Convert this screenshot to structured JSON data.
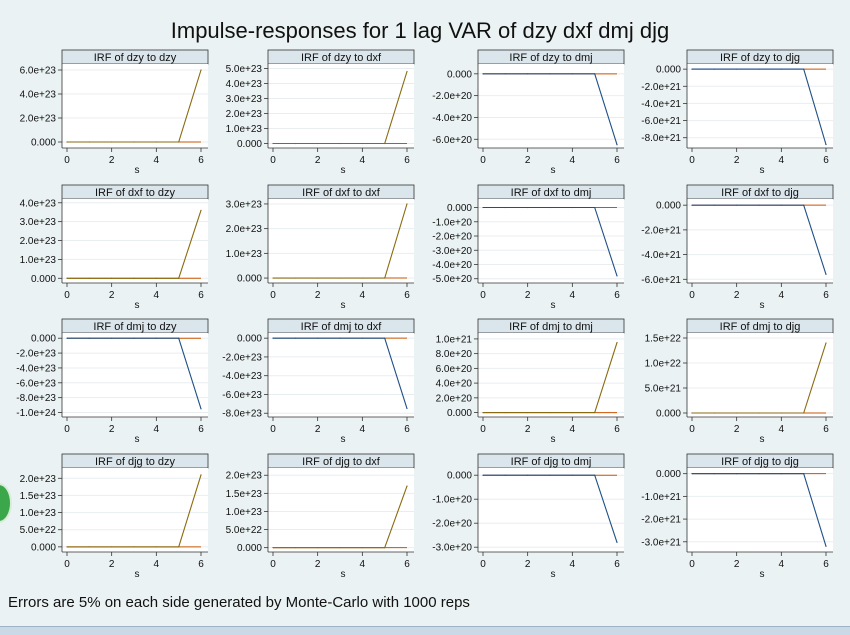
{
  "title": "Impulse-responses for 1 lag VAR of dzy dxf dmj djg",
  "note": "Errors are 5% on each side generated by Monte-Carlo with 1000 reps",
  "colors": {
    "background": "#eaf2f3",
    "plot_area": "#ffffff",
    "panel_header": "#dbe6ec",
    "rising_line": "#8a6a10",
    "falling_line": "#1f4f86",
    "baseline": "#cc5500"
  },
  "chart_data": [
    {
      "type": "line",
      "title": "IRF of dzy to dzy",
      "xlabel": "s",
      "x": [
        0,
        1,
        2,
        3,
        4,
        5,
        6
      ],
      "values": [
        0,
        0,
        0,
        0,
        0,
        0,
        6e+23
      ],
      "ylim": [
        -5e+22,
        6.5e+23
      ],
      "yticks": [
        0,
        2e+23,
        4e+23,
        6e+23
      ],
      "ytick_labels": [
        "0.000",
        "2.0e+23",
        "4.0e+23",
        "6.0e+23"
      ],
      "xticks": [
        "0",
        "2",
        "4",
        "6"
      ]
    },
    {
      "type": "line",
      "title": "IRF of dzy to dxf",
      "xlabel": "s",
      "x": [
        0,
        1,
        2,
        3,
        4,
        5,
        6
      ],
      "values": [
        0,
        0,
        0,
        0,
        0,
        0,
        4.8e+23
      ],
      "ylim": [
        -3e+22,
        5.3e+23
      ],
      "yticks": [
        0,
        1e+23,
        2e+23,
        3e+23,
        4e+23,
        5e+23
      ],
      "ytick_labels": [
        "0.000",
        "1.0e+23",
        "2.0e+23",
        "3.0e+23",
        "4.0e+23",
        "5.0e+23"
      ],
      "xticks": [
        "0",
        "2",
        "4",
        "6"
      ]
    },
    {
      "type": "line",
      "title": "IRF of dzy to dmj",
      "xlabel": "s",
      "x": [
        0,
        1,
        2,
        3,
        4,
        5,
        6
      ],
      "values": [
        0,
        0,
        0,
        0,
        0,
        0,
        -6.5e+20
      ],
      "ylim": [
        -6.8e+20,
        9e+19
      ],
      "yticks": [
        0,
        -2e+20,
        -4e+20,
        -6e+20
      ],
      "ytick_labels": [
        "0.000",
        "-2.0e+20",
        "-4.0e+20",
        "-6.0e+20"
      ],
      "xticks": [
        "0",
        "2",
        "4",
        "6"
      ]
    },
    {
      "type": "line",
      "title": "IRF of dzy to djg",
      "xlabel": "s",
      "x": [
        0,
        1,
        2,
        3,
        4,
        5,
        6
      ],
      "values": [
        0,
        0,
        0,
        0,
        0,
        0,
        -8.8e+21
      ],
      "ylim": [
        -9.2e+21,
        6e+20
      ],
      "yticks": [
        0,
        -2e+21,
        -4e+21,
        -6e+21,
        -8e+21
      ],
      "ytick_labels": [
        "0.000",
        "-2.0e+21",
        "-4.0e+21",
        "-6.0e+21",
        "-8.0e+21"
      ],
      "xticks": [
        "0",
        "2",
        "4",
        "6"
      ]
    },
    {
      "type": "line",
      "title": "IRF of dxf to dzy",
      "xlabel": "s",
      "x": [
        0,
        1,
        2,
        3,
        4,
        5,
        6
      ],
      "values": [
        0,
        0,
        0,
        0,
        0,
        0,
        3.6e+23
      ],
      "ylim": [
        -2.5e+22,
        4.2e+23
      ],
      "yticks": [
        0,
        1e+23,
        2e+23,
        3e+23,
        4e+23
      ],
      "ytick_labels": [
        "0.000",
        "1.0e+23",
        "2.0e+23",
        "3.0e+23",
        "4.0e+23"
      ],
      "xticks": [
        "0",
        "2",
        "4",
        "6"
      ]
    },
    {
      "type": "line",
      "title": "IRF of dxf to dxf",
      "xlabel": "s",
      "x": [
        0,
        1,
        2,
        3,
        4,
        5,
        6
      ],
      "values": [
        0,
        0,
        0,
        0,
        0,
        0,
        3e+23
      ],
      "ylim": [
        -2e+22,
        3.2e+23
      ],
      "yticks": [
        0,
        1e+23,
        2e+23,
        3e+23
      ],
      "ytick_labels": [
        "0.000",
        "1.0e+23",
        "2.0e+23",
        "3.0e+23"
      ],
      "xticks": [
        "0",
        "2",
        "4",
        "6"
      ]
    },
    {
      "type": "line",
      "title": "IRF of dxf to dmj",
      "xlabel": "s",
      "x": [
        0,
        1,
        2,
        3,
        4,
        5,
        6
      ],
      "values": [
        0,
        0,
        0,
        0,
        0,
        0,
        -4.8e+20
      ],
      "ylim": [
        -5.3e+20,
        6e+19
      ],
      "yticks": [
        0,
        -1e+20,
        -2e+20,
        -3e+20,
        -4e+20,
        -5e+20
      ],
      "ytick_labels": [
        "0.000",
        "-1.0e+20",
        "-2.0e+20",
        "-3.0e+20",
        "-4.0e+20",
        "-5.0e+20"
      ],
      "xticks": [
        "0",
        "2",
        "4",
        "6"
      ]
    },
    {
      "type": "line",
      "title": "IRF of dxf to djg",
      "xlabel": "s",
      "x": [
        0,
        1,
        2,
        3,
        4,
        5,
        6
      ],
      "values": [
        0,
        0,
        0,
        0,
        0,
        0,
        -5.6e+21
      ],
      "ylim": [
        -6.3e+21,
        5e+20
      ],
      "yticks": [
        0,
        -2e+21,
        -4e+21,
        -6e+21
      ],
      "ytick_labels": [
        "0.000",
        "-2.0e+21",
        "-4.0e+21",
        "-6.0e+21"
      ],
      "xticks": [
        "0",
        "2",
        "4",
        "6"
      ]
    },
    {
      "type": "line",
      "title": "IRF of dmj to dzy",
      "xlabel": "s",
      "x": [
        0,
        1,
        2,
        3,
        4,
        5,
        6
      ],
      "values": [
        0,
        0,
        0,
        0,
        0,
        0,
        -9.5e+23
      ],
      "ylim": [
        -1.06e+24,
        7e+22
      ],
      "yticks": [
        0,
        -2e+23,
        -4e+23,
        -6e+23,
        -8e+23,
        -1e+24
      ],
      "ytick_labels": [
        "0.000",
        "-2.0e+23",
        "-4.0e+23",
        "-6.0e+23",
        "-8.0e+23",
        "-1.0e+24"
      ],
      "xticks": [
        "0",
        "2",
        "4",
        "6"
      ]
    },
    {
      "type": "line",
      "title": "IRF of dmj to dxf",
      "xlabel": "s",
      "x": [
        0,
        1,
        2,
        3,
        4,
        5,
        6
      ],
      "values": [
        0,
        0,
        0,
        0,
        0,
        0,
        -7.5e+23
      ],
      "ylim": [
        -8.4e+23,
        5.5e+22
      ],
      "yticks": [
        0,
        -2e+23,
        -4e+23,
        -6e+23,
        -8e+23
      ],
      "ytick_labels": [
        "0.000",
        "-2.0e+23",
        "-4.0e+23",
        "-6.0e+23",
        "-8.0e+23"
      ],
      "xticks": [
        "0",
        "2",
        "4",
        "6"
      ]
    },
    {
      "type": "line",
      "title": "IRF of dmj to dmj",
      "xlabel": "s",
      "x": [
        0,
        1,
        2,
        3,
        4,
        5,
        6
      ],
      "values": [
        0,
        0,
        0,
        0,
        0,
        0,
        9.5e+20
      ],
      "ylim": [
        -6e+19,
        1.08e+21
      ],
      "yticks": [
        0,
        2e+20,
        4e+20,
        6e+20,
        8e+20,
        1e+21
      ],
      "ytick_labels": [
        "0.000",
        "2.0e+20",
        "4.0e+20",
        "6.0e+20",
        "8.0e+20",
        "1.0e+21"
      ],
      "xticks": [
        "0",
        "2",
        "4",
        "6"
      ]
    },
    {
      "type": "line",
      "title": "IRF of dmj to djg",
      "xlabel": "s",
      "x": [
        0,
        1,
        2,
        3,
        4,
        5,
        6
      ],
      "values": [
        0,
        0,
        0,
        0,
        0,
        0,
        1.4e+22
      ],
      "ylim": [
        -8e+20,
        1.6e+22
      ],
      "yticks": [
        0,
        5e+21,
        1e+22,
        1.5e+22
      ],
      "ytick_labels": [
        "0.000",
        "5.0e+21",
        "1.0e+22",
        "1.5e+22"
      ],
      "xticks": [
        "0",
        "2",
        "4",
        "6"
      ]
    },
    {
      "type": "line",
      "title": "IRF of djg to dzy",
      "xlabel": "s",
      "x": [
        0,
        1,
        2,
        3,
        4,
        5,
        6
      ],
      "values": [
        0,
        0,
        0,
        0,
        0,
        0,
        2.1e+23
      ],
      "ylim": [
        -1.5e+22,
        2.3e+23
      ],
      "yticks": [
        0,
        5e+22,
        1e+23,
        1.5e+23,
        2e+23
      ],
      "ytick_labels": [
        "0.000",
        "5.0e+22",
        "1.0e+23",
        "1.5e+23",
        "2.0e+23"
      ],
      "xticks": [
        "0",
        "2",
        "4",
        "6"
      ]
    },
    {
      "type": "line",
      "title": "IRF of djg to dxf",
      "xlabel": "s",
      "x": [
        0,
        1,
        2,
        3,
        4,
        5,
        6
      ],
      "values": [
        0,
        0,
        0,
        0,
        0,
        0,
        1.7e+23
      ],
      "ylim": [
        -1.2e+22,
        2.2e+23
      ],
      "yticks": [
        0,
        5e+22,
        1e+23,
        1.5e+23,
        2e+23
      ],
      "ytick_labels": [
        "0.000",
        "5.0e+22",
        "1.0e+23",
        "1.5e+23",
        "2.0e+23"
      ],
      "xticks": [
        "0",
        "2",
        "4",
        "6"
      ]
    },
    {
      "type": "line",
      "title": "IRF of djg to dmj",
      "xlabel": "s",
      "x": [
        0,
        1,
        2,
        3,
        4,
        5,
        6
      ],
      "values": [
        0,
        0,
        0,
        0,
        0,
        0,
        -2.8e+20
      ],
      "ylim": [
        -3.2e+20,
        3e+19
      ],
      "yticks": [
        0,
        -1e+20,
        -2e+20,
        -3e+20
      ],
      "ytick_labels": [
        "0.000",
        "-1.0e+20",
        "-2.0e+20",
        "-3.0e+20"
      ],
      "xticks": [
        "0",
        "2",
        "4",
        "6"
      ]
    },
    {
      "type": "line",
      "title": "IRF of djg to djg",
      "xlabel": "s",
      "x": [
        0,
        1,
        2,
        3,
        4,
        5,
        6
      ],
      "values": [
        0,
        0,
        0,
        0,
        0,
        0,
        -3.2e+21
      ],
      "ylim": [
        -3.45e+21,
        2.5e+20
      ],
      "yticks": [
        0,
        -1e+21,
        -2e+21,
        -3e+21
      ],
      "ytick_labels": [
        "0.000",
        "-1.0e+21",
        "-2.0e+21",
        "-3.0e+21"
      ],
      "xticks": [
        "0",
        "2",
        "4",
        "6"
      ]
    }
  ]
}
